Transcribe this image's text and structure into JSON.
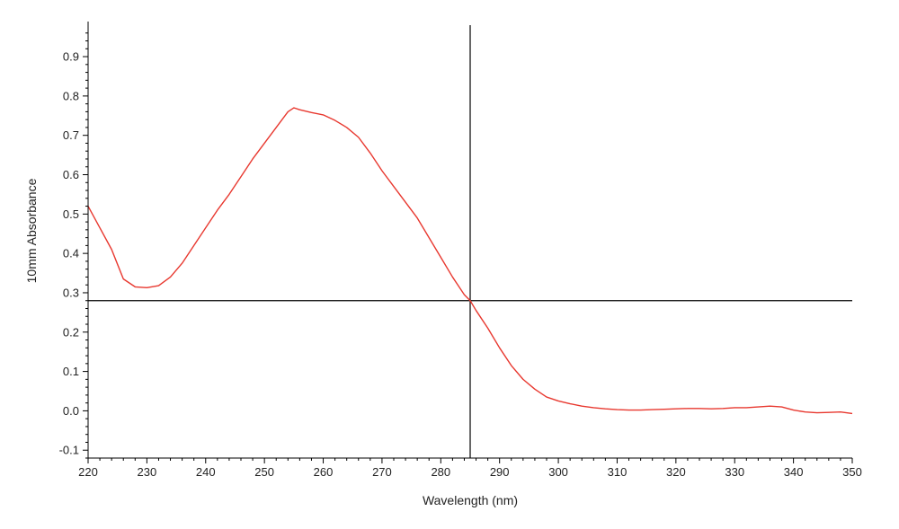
{
  "chart_data": {
    "type": "line",
    "title": "",
    "xlabel": "Wavelength (nm)",
    "ylabel": "10mm Absorbance",
    "xlim": [
      220,
      350
    ],
    "ylim": [
      -0.12,
      0.98
    ],
    "xticks": [
      220,
      230,
      240,
      250,
      260,
      270,
      280,
      290,
      300,
      310,
      320,
      330,
      340,
      350
    ],
    "yticks": [
      -0.1,
      0.0,
      0.1,
      0.2,
      0.3,
      0.4,
      0.5,
      0.6,
      0.7,
      0.8,
      0.9
    ],
    "ytick_labels": [
      "-0.1",
      "0.0",
      "0.1",
      "0.2",
      "0.3",
      "0.4",
      "0.5",
      "0.6",
      "0.7",
      "0.8",
      "0.9"
    ],
    "grid": false,
    "crosshair": {
      "x": 285,
      "y": 0.28
    },
    "series": [
      {
        "color": "#e8382f",
        "x": [
          220,
          222,
          224,
          226,
          228,
          230,
          232,
          234,
          236,
          238,
          240,
          242,
          244,
          246,
          248,
          250,
          252,
          254,
          255,
          256,
          258,
          260,
          262,
          264,
          266,
          268,
          270,
          272,
          274,
          276,
          278,
          280,
          282,
          284,
          285,
          286,
          288,
          290,
          292,
          294,
          296,
          298,
          300,
          302,
          304,
          306,
          308,
          310,
          312,
          314,
          316,
          318,
          320,
          322,
          324,
          326,
          328,
          330,
          332,
          334,
          336,
          338,
          340,
          342,
          344,
          346,
          348,
          350
        ],
        "y": [
          0.52,
          0.465,
          0.41,
          0.335,
          0.315,
          0.313,
          0.318,
          0.34,
          0.375,
          0.42,
          0.465,
          0.51,
          0.55,
          0.595,
          0.64,
          0.68,
          0.72,
          0.76,
          0.77,
          0.765,
          0.758,
          0.752,
          0.738,
          0.72,
          0.695,
          0.655,
          0.61,
          0.57,
          0.53,
          0.49,
          0.44,
          0.39,
          0.34,
          0.295,
          0.28,
          0.255,
          0.21,
          0.16,
          0.115,
          0.08,
          0.055,
          0.035,
          0.025,
          0.018,
          0.012,
          0.008,
          0.005,
          0.003,
          0.002,
          0.002,
          0.003,
          0.004,
          0.005,
          0.006,
          0.006,
          0.005,
          0.006,
          0.008,
          0.008,
          0.01,
          0.012,
          0.01,
          0.002,
          -0.003,
          -0.005,
          -0.004,
          -0.003,
          -0.007
        ]
      }
    ]
  }
}
